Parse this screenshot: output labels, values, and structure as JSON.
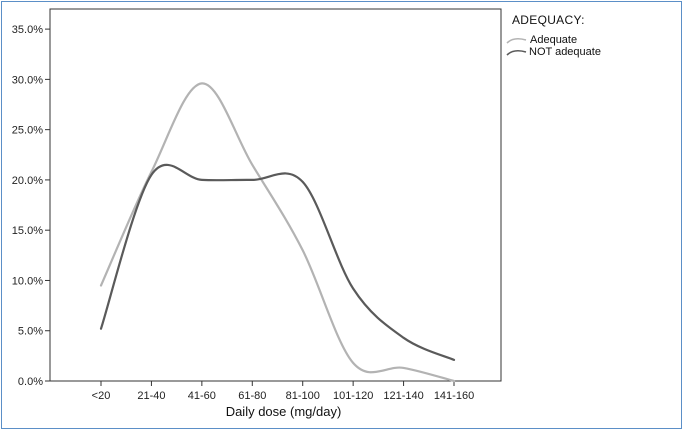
{
  "chart_data": {
    "type": "line",
    "xlabel": "Daily dose (mg/day)",
    "ylabel": "",
    "categories": [
      "<20",
      "21-40",
      "41-60",
      "61-80",
      "81-100",
      "101-120",
      "121-140",
      "141-160"
    ],
    "ylim": [
      0,
      37
    ],
    "yticks": [
      "0.0%",
      "5.0%",
      "10.0%",
      "15.0%",
      "20.0%",
      "25.0%",
      "30.0%",
      "35.0%"
    ],
    "ytick_values": [
      0,
      5,
      10,
      15,
      20,
      25,
      30,
      35
    ],
    "grid": false,
    "legend": {
      "title": "ADEQUACY:",
      "position": "top-right"
    },
    "series": [
      {
        "name": "Adequate",
        "color": "#b3b3b3",
        "values": [
          9.5,
          20.8,
          29.6,
          21.5,
          13.0,
          1.8,
          1.3,
          0.0
        ]
      },
      {
        "name": "NOT adequate",
        "color": "#5a5a5a",
        "values": [
          5.2,
          20.5,
          20.0,
          20.0,
          19.8,
          9.2,
          4.3,
          2.1
        ]
      }
    ]
  }
}
